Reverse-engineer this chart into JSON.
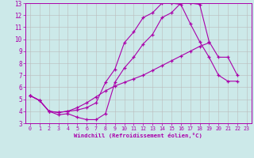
{
  "title": "",
  "xlabel": "Windchill (Refroidissement éolien,°C)",
  "xlim": [
    -0.5,
    23.5
  ],
  "ylim": [
    3,
    13
  ],
  "xticks": [
    0,
    1,
    2,
    3,
    4,
    5,
    6,
    7,
    8,
    9,
    10,
    11,
    12,
    13,
    14,
    15,
    16,
    17,
    18,
    19,
    20,
    21,
    22,
    23
  ],
  "yticks": [
    3,
    4,
    5,
    6,
    7,
    8,
    9,
    10,
    11,
    12,
    13
  ],
  "bg_color": "#cce9e9",
  "line_color": "#aa00aa",
  "grid_color": "#bbbbbb",
  "line1_x": [
    0,
    1,
    2,
    3,
    4,
    5,
    6,
    7,
    8,
    9,
    10,
    11,
    12,
    13,
    14,
    15,
    16,
    17,
    18,
    19,
    20,
    21,
    22
  ],
  "line1_y": [
    5.3,
    4.9,
    4.0,
    3.7,
    3.8,
    3.5,
    3.3,
    3.3,
    3.8,
    6.4,
    7.6,
    8.5,
    9.6,
    10.4,
    11.8,
    12.2,
    13.0,
    13.0,
    12.9,
    9.8,
    8.5,
    8.5,
    7.0
  ],
  "line2_x": [
    0,
    1,
    2,
    3,
    4,
    5,
    6,
    7,
    8,
    9,
    10,
    11,
    12,
    13,
    14,
    15,
    16,
    17,
    18,
    19,
    20,
    21,
    22,
    23
  ],
  "line2_y": [
    5.3,
    4.9,
    4.0,
    3.9,
    4.0,
    4.1,
    4.3,
    4.7,
    6.4,
    7.5,
    9.7,
    10.6,
    11.8,
    12.2,
    13.0,
    13.0,
    12.9,
    11.3,
    9.8,
    8.5,
    7.0,
    6.5,
    6.5,
    null
  ],
  "line3_x": [
    0,
    1,
    2,
    3,
    4,
    5,
    6,
    7,
    8,
    9,
    10,
    11,
    12,
    13,
    14,
    15,
    16,
    17,
    18,
    19,
    20,
    21,
    22,
    23
  ],
  "line3_y": [
    5.3,
    4.9,
    4.0,
    3.9,
    4.0,
    4.3,
    4.7,
    5.2,
    5.7,
    6.1,
    6.4,
    6.7,
    7.0,
    7.4,
    7.8,
    8.2,
    8.6,
    9.0,
    9.4,
    9.7,
    null,
    null,
    null,
    null
  ]
}
